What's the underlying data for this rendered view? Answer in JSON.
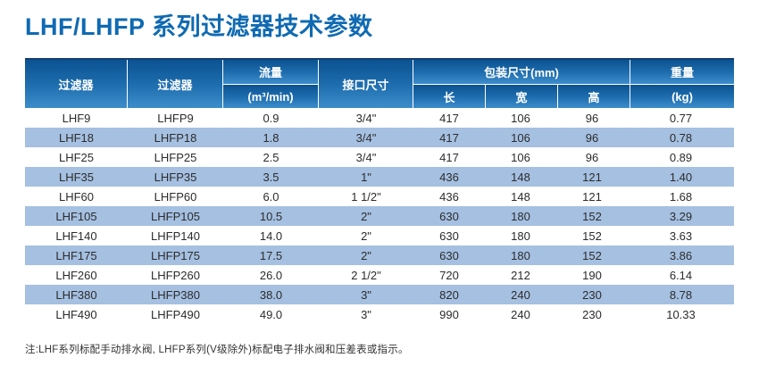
{
  "page_title": "LHF/LHFP 系列过滤器技术参数",
  "colors": {
    "title_blue": "#0f6ab2",
    "header_gradient_top": "#0b5291",
    "header_gradient_bottom": "#3e8dcb",
    "table_top_border": "#123e72",
    "alt_row_blue": "#a5c0e1",
    "body_text": "#2c2c2c"
  },
  "table": {
    "header": {
      "col_filter1": "过滤器",
      "col_filter2": "过滤器",
      "flow_label": "流量",
      "flow_unit": "(m³/min)",
      "port_label": "接口尺寸",
      "package_label": "包装尺寸(mm)",
      "package_sub": [
        "长",
        "宽",
        "高"
      ],
      "weight_label": "重量",
      "weight_unit": "(kg)"
    },
    "rows": [
      {
        "filter": "LHF9",
        "filter_p": "LHFP9",
        "flow": "0.9",
        "port": "3/4\"",
        "length": "417",
        "width": "106",
        "height": "96",
        "weight": "0.77"
      },
      {
        "filter": "LHF18",
        "filter_p": "LHFP18",
        "flow": "1.8",
        "port": "3/4\"",
        "length": "417",
        "width": "106",
        "height": "96",
        "weight": "0.78"
      },
      {
        "filter": "LHF25",
        "filter_p": "LHFP25",
        "flow": "2.5",
        "port": "3/4\"",
        "length": "417",
        "width": "106",
        "height": "96",
        "weight": "0.89"
      },
      {
        "filter": "LHF35",
        "filter_p": "LHFP35",
        "flow": "3.5",
        "port": "1\"",
        "length": "436",
        "width": "148",
        "height": "121",
        "weight": "1.40"
      },
      {
        "filter": "LHF60",
        "filter_p": "LHFP60",
        "flow": "6.0",
        "port": "1 1/2\"",
        "length": "436",
        "width": "148",
        "height": "121",
        "weight": "1.68"
      },
      {
        "filter": "LHF105",
        "filter_p": "LHFP105",
        "flow": "10.5",
        "port": "2\"",
        "length": "630",
        "width": "180",
        "height": "152",
        "weight": "3.29"
      },
      {
        "filter": "LHF140",
        "filter_p": "LHFP140",
        "flow": "14.0",
        "port": "2\"",
        "length": "630",
        "width": "180",
        "height": "152",
        "weight": "3.63"
      },
      {
        "filter": "LHF175",
        "filter_p": "LHFP175",
        "flow": "17.5",
        "port": "2\"",
        "length": "630",
        "width": "180",
        "height": "152",
        "weight": "3.86"
      },
      {
        "filter": "LHF260",
        "filter_p": "LHFP260",
        "flow": "26.0",
        "port": "2 1/2\"",
        "length": "720",
        "width": "212",
        "height": "190",
        "weight": "6.14"
      },
      {
        "filter": "LHF380",
        "filter_p": "LHFP380",
        "flow": "38.0",
        "port": "3\"",
        "length": "820",
        "width": "240",
        "height": "230",
        "weight": "8.78"
      },
      {
        "filter": "LHF490",
        "filter_p": "LHFP490",
        "flow": "49.0",
        "port": "3\"",
        "length": "990",
        "width": "240",
        "height": "230",
        "weight": "10.33"
      }
    ]
  },
  "note": "注:LHF系列标配手动排水阀, LHFP系列(V级除外)标配电子排水阀和压差表或指示。"
}
